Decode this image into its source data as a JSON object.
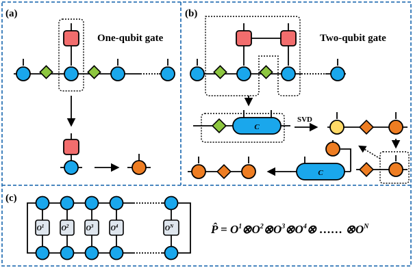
{
  "panels": {
    "a": {
      "label": "(a)",
      "title": "One-qubit gate"
    },
    "b": {
      "label": "(b)",
      "title": "Two-qubit gate",
      "svd_label": "SVD",
      "contract_label": "C"
    },
    "c": {
      "label": "(c)",
      "operators": [
        {
          "base": "O",
          "sup": "1"
        },
        {
          "base": "O",
          "sup": "2"
        },
        {
          "base": "O",
          "sup": "3"
        },
        {
          "base": "O",
          "sup": "4"
        },
        {
          "base": "O",
          "sup": "N"
        }
      ],
      "formula": {
        "lhs": "P̂ = ",
        "terms": [
          {
            "base": "O",
            "sup": "1",
            "after": "⊗"
          },
          {
            "base": "O",
            "sup": "2",
            "after": "⊗"
          },
          {
            "base": "O",
            "sup": "3",
            "after": "⊗"
          },
          {
            "base": "O",
            "sup": "4",
            "after": "⊗ …… ⊗"
          },
          {
            "base": "O",
            "sup": "N",
            "after": ""
          }
        ]
      }
    }
  },
  "colors": {
    "tensor_blue": "#1aa7ec",
    "gate_red": "#f26d6d",
    "diamond_green": "#8dc63f",
    "orange": "#ee7d22",
    "yellow": "#ffd966",
    "operator_box": "#dfe6ee",
    "frame_dash": "#2e75b6"
  }
}
